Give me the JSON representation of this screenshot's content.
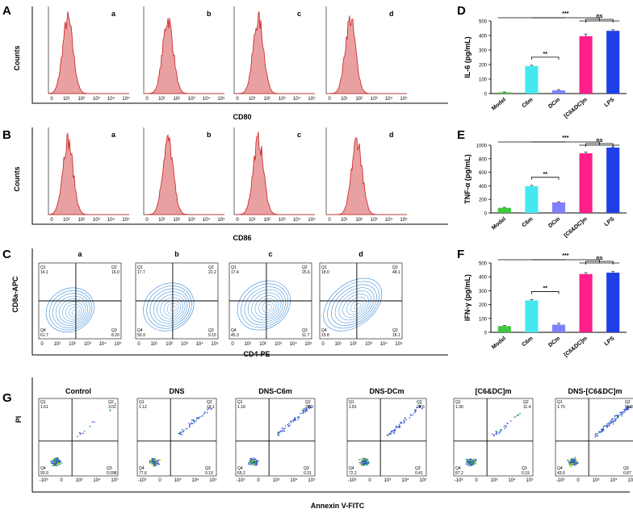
{
  "panels": {
    "A": "A",
    "B": "B",
    "C": "C",
    "D": "D",
    "E": "E",
    "F": "F",
    "G": "G"
  },
  "histograms": {
    "ylabel": "Counts",
    "ticks": [
      "0",
      "10¹",
      "10²",
      "10³",
      "10⁴",
      "10⁵"
    ],
    "sublabels": [
      "a",
      "b",
      "c",
      "d"
    ],
    "colors": {
      "stroke": "#cc1f1f",
      "fill": "#e8a0a0"
    },
    "rows": [
      {
        "xlabel": "CD80",
        "peaks": [
          0.24,
          0.3,
          0.3,
          0.3
        ]
      },
      {
        "xlabel": "CD86",
        "peaks": [
          0.24,
          0.3,
          0.3,
          0.38
        ]
      }
    ]
  },
  "contour": {
    "xlabel": "CD4-PE",
    "ylabel": "CD8a-APC",
    "sublabels": [
      "a",
      "b",
      "c",
      "d"
    ],
    "ticks": [
      "0",
      "10¹",
      "10²",
      "10³",
      "10⁴",
      "10⁵"
    ],
    "quadrants": [
      {
        "q1_label": "Q1",
        "q1": "14.1",
        "q2_label": "Q2",
        "q2": "16.0",
        "q3_label": "Q3",
        "q3": "8.20",
        "q4_label": "Q4",
        "q4": "61.7"
      },
      {
        "q1_label": "Q1",
        "q1": "17.7",
        "q2_label": "Q2",
        "q2": "22.2",
        "q3_label": "Q3",
        "q3": "9.15",
        "q4_label": "Q4",
        "q4": "50.9"
      },
      {
        "q1_label": "Q1",
        "q1": "17.4",
        "q2_label": "Q2",
        "q2": "25.6",
        "q3_label": "Q3",
        "q3": "11.7",
        "q4_label": "Q4",
        "q4": "45.3"
      },
      {
        "q1_label": "Q1",
        "q1": "18.0",
        "q2_label": "Q2",
        "q2": "48.1",
        "q3_label": "Q3",
        "q3": "18.1",
        "q4_label": "Q4",
        "q4": "15.8"
      }
    ],
    "color": "#2a7fd4"
  },
  "apoptosis": {
    "xlabel": "Annexin V-FITC",
    "ylabel": "PI",
    "titles": [
      "Control",
      "DNS",
      "DNS-C6m",
      "DNS-DCm",
      "[C6&DC]m",
      "DNS-[C6&DC]m"
    ],
    "ticks": [
      "-10³",
      "0",
      "10³",
      "10⁴",
      "10⁵"
    ],
    "quadrants": [
      {
        "q1_label": "Q1",
        "q1": "1.61",
        "q2_label": "Q2",
        "q2": "3.02",
        "q3_label": "Q3",
        "q3": "0.098",
        "q4_label": "Q4",
        "q4": "93.9"
      },
      {
        "q1_label": "Q1",
        "q1": "1.12",
        "q2_label": "Q2",
        "q2": "19.1",
        "q3_label": "Q3",
        "q3": "0.19",
        "q4_label": "Q4",
        "q4": "77.6"
      },
      {
        "q1_label": "Q1",
        "q1": "1.18",
        "q2_label": "Q2",
        "q2": "28.9",
        "q3_label": "Q3",
        "q3": "0.31",
        "q4_label": "Q4",
        "q4": "69.2"
      },
      {
        "q1_label": "Q1",
        "q1": "1.81",
        "q2_label": "Q2",
        "q2": "25.6",
        "q3_label": "Q3",
        "q3": "0.41",
        "q4_label": "Q4",
        "q4": "72.2"
      },
      {
        "q1_label": "Q1",
        "q1": "1.30",
        "q2_label": "Q2",
        "q2": "11.4",
        "q3_label": "Q3",
        "q3": "0.19",
        "q4_label": "Q4",
        "q4": "87.2"
      },
      {
        "q1_label": "Q1",
        "q1": "1.75",
        "q2_label": "Q2",
        "q2": "53.8",
        "q3_label": "Q3",
        "q3": "0.87",
        "q4_label": "Q4",
        "q4": "43.6"
      }
    ]
  },
  "chart_data": [
    {
      "type": "bar",
      "panel": "D",
      "categories": [
        "Model",
        "C6m",
        "DCm",
        "[C6&DC]m",
        "LPS"
      ],
      "values": [
        8,
        190,
        22,
        395,
        432
      ],
      "errors": [
        3,
        5,
        5,
        15,
        8
      ],
      "colors": [
        "#3ec93e",
        "#45e8ee",
        "#7f7fff",
        "#ff1f8a",
        "#1f3fe6"
      ],
      "ylabel": "IL-6 (pg/mL)",
      "ylim": [
        0,
        500
      ],
      "yticks": [
        0,
        100,
        200,
        300,
        400,
        500
      ],
      "significance": [
        {
          "label": "***",
          "from": [
            0,
            2
          ],
          "to": [
            3,
            4
          ]
        },
        {
          "label": "ns",
          "from": [
            3,
            3
          ],
          "to": [
            4,
            4
          ]
        },
        {
          "label": "**",
          "from": [
            1,
            1
          ],
          "to": [
            2,
            2
          ]
        }
      ]
    },
    {
      "type": "bar",
      "panel": "E",
      "categories": [
        "Model",
        "C6m",
        "DCm",
        "[C6&DC]m",
        "LPS"
      ],
      "values": [
        75,
        395,
        155,
        880,
        965
      ],
      "errors": [
        8,
        12,
        10,
        20,
        12
      ],
      "colors": [
        "#3ec93e",
        "#45e8ee",
        "#7f7fff",
        "#ff1f8a",
        "#1f3fe6"
      ],
      "ylabel": "TNF-α (pg/mL)",
      "ylim": [
        0,
        1000
      ],
      "yticks": [
        0,
        200,
        400,
        600,
        800,
        1000
      ],
      "significance": [
        {
          "label": "***",
          "from": [
            0,
            2
          ],
          "to": [
            3,
            4
          ]
        },
        {
          "label": "ns",
          "from": [
            3,
            3
          ],
          "to": [
            4,
            4
          ]
        },
        {
          "label": "**",
          "from": [
            1,
            1
          ],
          "to": [
            2,
            2
          ]
        }
      ]
    },
    {
      "type": "bar",
      "panel": "F",
      "categories": [
        "Model",
        "C6m",
        "DCm",
        "[C6&DC]m",
        "LPS"
      ],
      "values": [
        45,
        230,
        55,
        420,
        430
      ],
      "errors": [
        5,
        5,
        10,
        10,
        8
      ],
      "colors": [
        "#3ec93e",
        "#45e8ee",
        "#7f7fff",
        "#ff1f8a",
        "#1f3fe6"
      ],
      "ylabel": "IFN-γ (pg/mL)",
      "ylim": [
        0,
        500
      ],
      "yticks": [
        0,
        100,
        200,
        300,
        400,
        500
      ],
      "significance": [
        {
          "label": "***",
          "from": [
            0,
            2
          ],
          "to": [
            3,
            4
          ]
        },
        {
          "label": "ns",
          "from": [
            3,
            3
          ],
          "to": [
            4,
            4
          ]
        },
        {
          "label": "**",
          "from": [
            1,
            1
          ],
          "to": [
            2,
            2
          ]
        }
      ]
    }
  ]
}
